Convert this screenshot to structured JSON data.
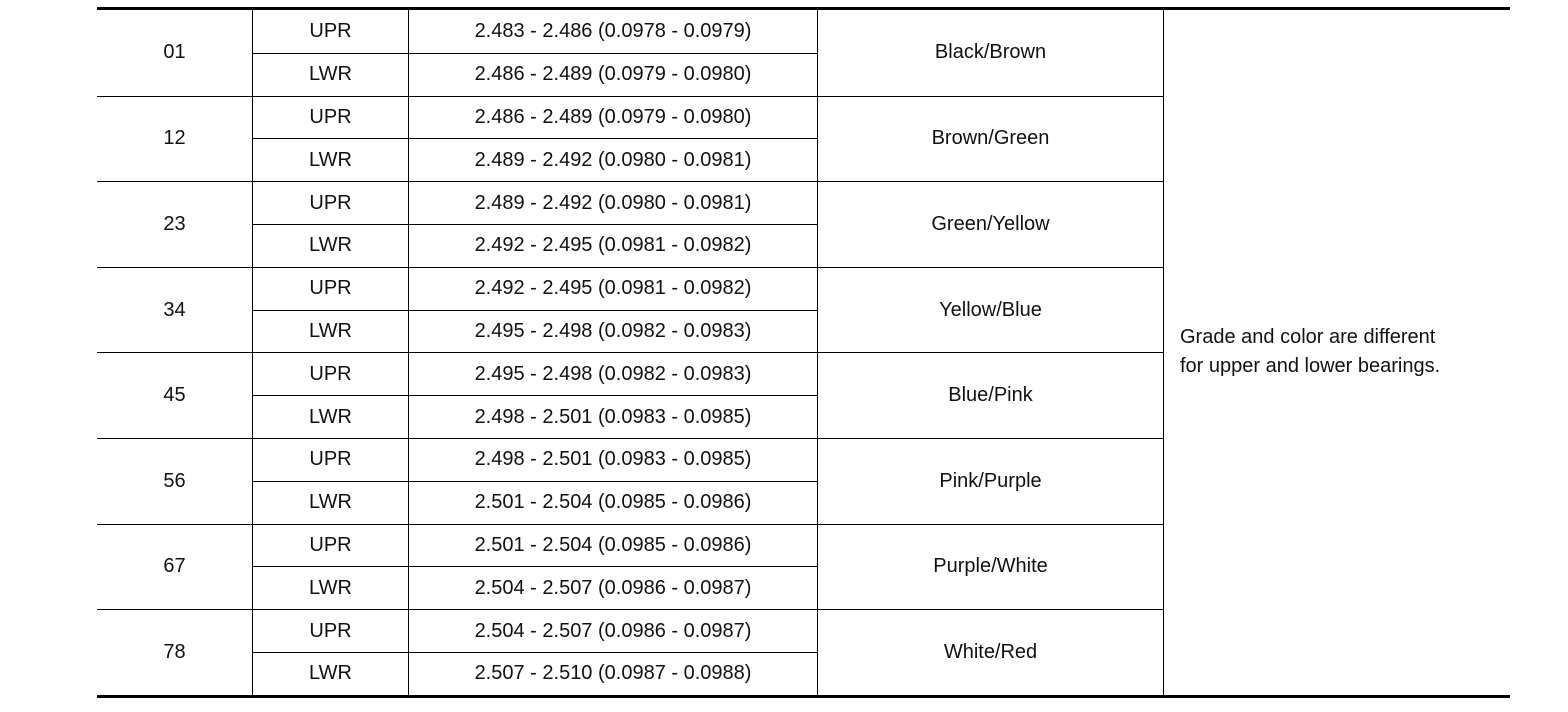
{
  "rows": [
    {
      "grade": "01",
      "upr": "2.483 - 2.486 (0.0978 - 0.0979)",
      "lwr": "2.486 - 2.489 (0.0979 - 0.0980)",
      "color": "Black/Brown"
    },
    {
      "grade": "12",
      "upr": "2.486 - 2.489 (0.0979 - 0.0980)",
      "lwr": "2.489 - 2.492 (0.0980 - 0.0981)",
      "color": "Brown/Green"
    },
    {
      "grade": "23",
      "upr": "2.489 - 2.492 (0.0980 - 0.0981)",
      "lwr": "2.492 - 2.495 (0.0981 - 0.0982)",
      "color": "Green/Yellow"
    },
    {
      "grade": "34",
      "upr": "2.492 - 2.495 (0.0981 - 0.0982)",
      "lwr": "2.495 - 2.498 (0.0982 - 0.0983)",
      "color": "Yellow/Blue"
    },
    {
      "grade": "45",
      "upr": "2.495 - 2.498 (0.0982 - 0.0983)",
      "lwr": "2.498 - 2.501 (0.0983 - 0.0985)",
      "color": "Blue/Pink"
    },
    {
      "grade": "56",
      "upr": "2.498 - 2.501 (0.0983 - 0.0985)",
      "lwr": "2.501 - 2.504 (0.0985 - 0.0986)",
      "color": "Pink/Purple"
    },
    {
      "grade": "67",
      "upr": "2.501 - 2.504 (0.0985 - 0.0986)",
      "lwr": "2.504 - 2.507 (0.0986 - 0.0987)",
      "color": "Purple/White"
    },
    {
      "grade": "78",
      "upr": "2.504 - 2.507 (0.0986 - 0.0987)",
      "lwr": "2.507 - 2.510 (0.0987 - 0.0988)",
      "color": "White/Red"
    }
  ],
  "labels": {
    "upper": "UPR",
    "lower": "LWR"
  },
  "note_line1": "Grade and color are different",
  "note_line2": "for upper and lower bearings."
}
